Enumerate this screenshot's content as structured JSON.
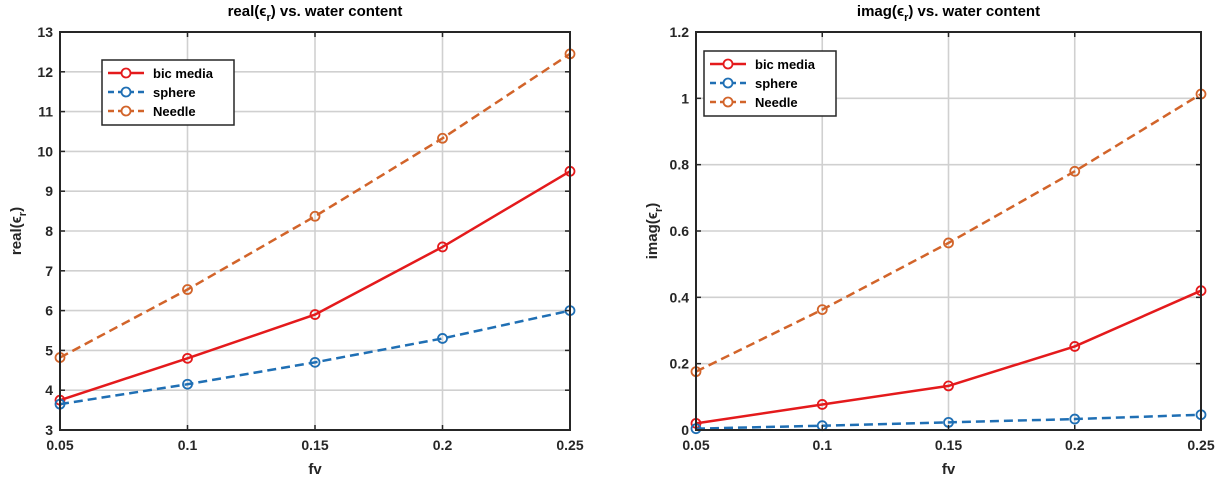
{
  "chart_data": [
    {
      "type": "line",
      "title": "real(ϵ",
      "title_sub": "r",
      "title_suffix": ") vs. water content",
      "xlabel": "fv",
      "ylabel": "real(ϵ",
      "ylabel_sub": "r",
      "ylabel_suffix": ")",
      "x": [
        0.05,
        0.1,
        0.15,
        0.2,
        0.25
      ],
      "xlim": [
        0.05,
        0.25
      ],
      "ylim": [
        3,
        13
      ],
      "xticks": [
        "0.05",
        "0.1",
        "0.15",
        "0.2",
        "0.25"
      ],
      "yticks": [
        "3",
        "4",
        "5",
        "6",
        "7",
        "8",
        "9",
        "10",
        "11",
        "12",
        "13"
      ],
      "grid": true,
      "legend_position": "top-left",
      "series": [
        {
          "name": "bic media",
          "values": [
            3.75,
            4.8,
            5.9,
            7.6,
            9.5
          ],
          "color": "#e41a1c",
          "dash": "solid"
        },
        {
          "name": "sphere",
          "values": [
            3.65,
            4.15,
            4.7,
            5.3,
            6.0
          ],
          "color": "#1f6fb4",
          "dash": "dashed"
        },
        {
          "name": "Needle",
          "values": [
            4.82,
            6.53,
            8.37,
            10.33,
            12.45
          ],
          "color": "#d2642a",
          "dash": "dashed"
        }
      ]
    },
    {
      "type": "line",
      "title": "imag(ϵ",
      "title_sub": "r",
      "title_suffix": ") vs. water content",
      "xlabel": "fv",
      "ylabel": "imag(ϵ",
      "ylabel_sub": "r",
      "ylabel_suffix": ")",
      "x": [
        0.05,
        0.1,
        0.15,
        0.2,
        0.25
      ],
      "xlim": [
        0.05,
        0.25
      ],
      "ylim": [
        0,
        1.2
      ],
      "xticks": [
        "0.05",
        "0.1",
        "0.15",
        "0.2",
        "0.25"
      ],
      "yticks": [
        "0",
        "0.2",
        "0.4",
        "0.6",
        "0.8",
        "1",
        "1.2"
      ],
      "grid": true,
      "legend_position": "top-left",
      "series": [
        {
          "name": "bic media",
          "values": [
            0.02,
            0.077,
            0.133,
            0.252,
            0.42
          ],
          "color": "#e41a1c",
          "dash": "solid"
        },
        {
          "name": "sphere",
          "values": [
            0.004,
            0.013,
            0.023,
            0.033,
            0.046
          ],
          "color": "#1f6fb4",
          "dash": "dashed"
        },
        {
          "name": "Needle",
          "values": [
            0.176,
            0.363,
            0.564,
            0.78,
            1.013
          ],
          "color": "#d2642a",
          "dash": "dashed"
        }
      ]
    }
  ]
}
